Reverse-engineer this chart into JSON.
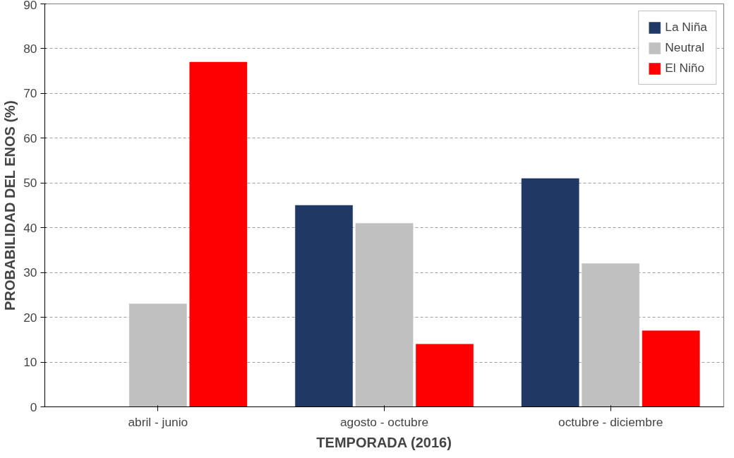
{
  "chart_data": {
    "type": "bar",
    "xlabel": "TEMPORADA (2016)",
    "ylabel": "PROBABILIDAD DEL ENOS (%)",
    "categories": [
      "abril - junio",
      "agosto - octubre",
      "octubre - diciembre"
    ],
    "series": [
      {
        "name": "La Niña",
        "color": "#1f3864",
        "values": [
          0,
          45,
          51
        ]
      },
      {
        "name": "Neutral",
        "color": "#c0c0c0",
        "values": [
          23,
          41,
          32
        ]
      },
      {
        "name": "El Niño",
        "color": "#ff0000",
        "values": [
          77,
          14,
          17
        ]
      }
    ],
    "ylim": [
      0,
      90
    ],
    "yticks": [
      0,
      10,
      20,
      30,
      40,
      50,
      60,
      70,
      80,
      90
    ],
    "grid": "y",
    "legend": "top right"
  }
}
